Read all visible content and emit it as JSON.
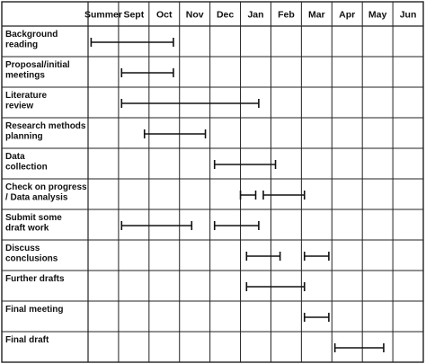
{
  "chart_data": {
    "type": "gantt",
    "months": [
      "Summer",
      "Sept",
      "Oct",
      "Nov",
      "Dec",
      "Jan",
      "Feb",
      "Mar",
      "Apr",
      "May",
      "Jun"
    ],
    "tasks": [
      {
        "label": [
          "Background",
          "reading"
        ],
        "bars": [
          [
            0.1,
            2.8
          ]
        ]
      },
      {
        "label": [
          "Proposal/initial",
          "meetings"
        ],
        "bars": [
          [
            1.1,
            2.8
          ]
        ]
      },
      {
        "label": [
          "Literature",
          "review"
        ],
        "bars": [
          [
            1.1,
            5.6
          ]
        ]
      },
      {
        "label": [
          "Research methods",
          "planning"
        ],
        "bars": [
          [
            1.85,
            3.85
          ]
        ]
      },
      {
        "label": [
          "Data",
          "collection"
        ],
        "bars": [
          [
            4.15,
            6.15
          ]
        ]
      },
      {
        "label": [
          "Check on progress",
          "/ Data analysis"
        ],
        "bars": [
          [
            5.0,
            5.5
          ],
          [
            5.75,
            7.1
          ]
        ]
      },
      {
        "label": [
          "Submit some",
          "draft work"
        ],
        "bars": [
          [
            1.1,
            3.4
          ],
          [
            4.15,
            5.6
          ]
        ]
      },
      {
        "label": [
          "Discuss",
          "conclusions"
        ],
        "bars": [
          [
            5.2,
            6.3
          ],
          [
            7.1,
            7.9
          ]
        ]
      },
      {
        "label": [
          "Further drafts"
        ],
        "bars": [
          [
            5.2,
            7.1
          ]
        ]
      },
      {
        "label": [
          "Final meeting"
        ],
        "bars": [
          [
            7.1,
            7.9
          ]
        ]
      },
      {
        "label": [
          "Final draft"
        ],
        "bars": [
          [
            8.1,
            9.7
          ]
        ]
      }
    ]
  }
}
